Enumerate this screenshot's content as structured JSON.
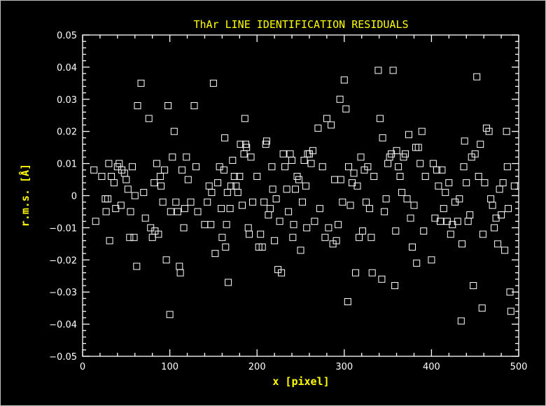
{
  "chart_data": {
    "type": "scatter",
    "title": "ThAr LINE IDENTIFICATION RESIDUALS",
    "xlabel": "x [pixel]",
    "ylabel": "r.m.s. [Å]",
    "xlim": [
      0,
      500
    ],
    "ylim": [
      -0.05,
      0.05
    ],
    "x_ticks": [
      0,
      100,
      200,
      300,
      400,
      500
    ],
    "x_tick_labels": [
      "0",
      "100",
      "200",
      "300",
      "400",
      "500"
    ],
    "y_ticks": [
      -0.05,
      -0.04,
      -0.03,
      -0.02,
      -0.01,
      0,
      0.01,
      0.02,
      0.03,
      0.04,
      0.05
    ],
    "y_tick_labels": [
      "−0.05",
      "−0.04",
      "−0.03",
      "−0.02",
      "−0.01",
      "0",
      "0.01",
      "0.02",
      "0.03",
      "0.04",
      "0.05"
    ],
    "marker": "open-square",
    "colors": {
      "background": "#000000",
      "axes": "#ffffff",
      "labels": "#ffff00",
      "markers": "#ffffff"
    },
    "points": [
      [
        13,
        0.008
      ],
      [
        15,
        -0.008
      ],
      [
        22,
        0.006
      ],
      [
        26,
        -0.001
      ],
      [
        27,
        -0.005
      ],
      [
        29,
        -0.001
      ],
      [
        30,
        0.01
      ],
      [
        31,
        -0.014
      ],
      [
        33,
        0.006
      ],
      [
        36,
        0.004
      ],
      [
        38,
        -0.004
      ],
      [
        40,
        0.009
      ],
      [
        42,
        0.01
      ],
      [
        44,
        -0.003
      ],
      [
        45,
        0.008
      ],
      [
        48,
        0.007
      ],
      [
        50,
        0.005
      ],
      [
        52,
        0.002
      ],
      [
        54,
        -0.013
      ],
      [
        55,
        -0.005
      ],
      [
        57,
        0.009
      ],
      [
        59,
        -0.013
      ],
      [
        60,
        0.0
      ],
      [
        62,
        -0.022
      ],
      [
        63,
        0.028
      ],
      [
        67,
        0.035
      ],
      [
        70,
        0.001
      ],
      [
        72,
        -0.007
      ],
      [
        76,
        0.024
      ],
      [
        78,
        -0.01
      ],
      [
        80,
        -0.013
      ],
      [
        82,
        0.004
      ],
      [
        83,
        -0.011
      ],
      [
        85,
        0.01
      ],
      [
        87,
        -0.012
      ],
      [
        89,
        0.006
      ],
      [
        90,
        0.003
      ],
      [
        92,
        -0.002
      ],
      [
        94,
        0.008
      ],
      [
        96,
        -0.02
      ],
      [
        98,
        0.028
      ],
      [
        100,
        -0.037
      ],
      [
        101,
        -0.005
      ],
      [
        103,
        0.012
      ],
      [
        105,
        0.02
      ],
      [
        107,
        -0.002
      ],
      [
        109,
        -0.005
      ],
      [
        111,
        -0.022
      ],
      [
        112,
        -0.024
      ],
      [
        114,
        0.008
      ],
      [
        116,
        -0.01
      ],
      [
        117,
        -0.004
      ],
      [
        119,
        0.012
      ],
      [
        121,
        0.005
      ],
      [
        124,
        -0.002
      ],
      [
        128,
        0.028
      ],
      [
        130,
        0.009
      ],
      [
        132,
        -0.005
      ],
      [
        140,
        -0.009
      ],
      [
        143,
        -0.002
      ],
      [
        145,
        0.003
      ],
      [
        147,
        -0.009
      ],
      [
        148,
        0.001
      ],
      [
        150,
        0.035
      ],
      [
        152,
        -0.018
      ],
      [
        155,
        0.004
      ],
      [
        157,
        0.009
      ],
      [
        159,
        -0.004
      ],
      [
        160,
        -0.013
      ],
      [
        162,
        0.008
      ],
      [
        163,
        0.018
      ],
      [
        164,
        -0.016
      ],
      [
        165,
        -0.009
      ],
      [
        166,
        0.001
      ],
      [
        167,
        -0.027
      ],
      [
        169,
        -0.004
      ],
      [
        170,
        0.003
      ],
      [
        172,
        0.011
      ],
      [
        174,
        0.006
      ],
      [
        176,
        0.003
      ],
      [
        178,
        0.001
      ],
      [
        180,
        0.006
      ],
      [
        181,
        0.016
      ],
      [
        183,
        -0.003
      ],
      [
        185,
        0.013
      ],
      [
        186,
        0.024
      ],
      [
        187,
        0.016
      ],
      [
        188,
        0.015
      ],
      [
        190,
        -0.01
      ],
      [
        191,
        -0.012
      ],
      [
        193,
        0.012
      ],
      [
        195,
        -0.002
      ],
      [
        200,
        0.006
      ],
      [
        202,
        -0.016
      ],
      [
        204,
        -0.012
      ],
      [
        206,
        -0.016
      ],
      [
        208,
        -0.002
      ],
      [
        210,
        0.016
      ],
      [
        211,
        0.017
      ],
      [
        213,
        -0.006
      ],
      [
        215,
        -0.004
      ],
      [
        217,
        0.009
      ],
      [
        218,
        0.002
      ],
      [
        220,
        -0.014
      ],
      [
        222,
        -0.001
      ],
      [
        224,
        -0.023
      ],
      [
        226,
        -0.008
      ],
      [
        228,
        -0.024
      ],
      [
        230,
        0.013
      ],
      [
        232,
        0.009
      ],
      [
        234,
        0.002
      ],
      [
        236,
        -0.005
      ],
      [
        238,
        0.013
      ],
      [
        240,
        0.011
      ],
      [
        241,
        -0.013
      ],
      [
        242,
        -0.009
      ],
      [
        244,
        0.002
      ],
      [
        246,
        0.006
      ],
      [
        248,
        0.005
      ],
      [
        250,
        -0.017
      ],
      [
        252,
        -0.002
      ],
      [
        254,
        0.011
      ],
      [
        256,
        0.003
      ],
      [
        257,
        -0.01
      ],
      [
        258,
        0.013
      ],
      [
        260,
        0.013
      ],
      [
        262,
        0.01
      ],
      [
        264,
        0.014
      ],
      [
        266,
        -0.008
      ],
      [
        270,
        0.021
      ],
      [
        272,
        -0.004
      ],
      [
        275,
        0.009
      ],
      [
        278,
        -0.013
      ],
      [
        280,
        0.024
      ],
      [
        282,
        -0.01
      ],
      [
        285,
        0.022
      ],
      [
        287,
        -0.015
      ],
      [
        289,
        0.005
      ],
      [
        291,
        -0.014
      ],
      [
        293,
        -0.009
      ],
      [
        295,
        0.03
      ],
      [
        296,
        0.005
      ],
      [
        298,
        -0.002
      ],
      [
        300,
        0.036
      ],
      [
        302,
        0.027
      ],
      [
        304,
        -0.033
      ],
      [
        305,
        0.009
      ],
      [
        307,
        -0.003
      ],
      [
        309,
        0.004
      ],
      [
        311,
        0.007
      ],
      [
        313,
        -0.024
      ],
      [
        315,
        0.003
      ],
      [
        317,
        -0.013
      ],
      [
        319,
        0.012
      ],
      [
        321,
        -0.011
      ],
      [
        323,
        0.008
      ],
      [
        325,
        -0.002
      ],
      [
        327,
        0.009
      ],
      [
        329,
        -0.004
      ],
      [
        331,
        -0.013
      ],
      [
        332,
        -0.024
      ],
      [
        334,
        0.006
      ],
      [
        339,
        0.039
      ],
      [
        341,
        0.024
      ],
      [
        343,
        -0.026
      ],
      [
        344,
        0.018
      ],
      [
        346,
        -0.005
      ],
      [
        348,
        -0.001
      ],
      [
        350,
        0.01
      ],
      [
        352,
        0.012
      ],
      [
        354,
        0.013
      ],
      [
        356,
        0.039
      ],
      [
        358,
        -0.028
      ],
      [
        359,
        -0.011
      ],
      [
        360,
        0.014
      ],
      [
        362,
        0.009
      ],
      [
        364,
        0.006
      ],
      [
        366,
        0.001
      ],
      [
        368,
        0.012
      ],
      [
        370,
        0.013
      ],
      [
        372,
        -0.001
      ],
      [
        374,
        0.019
      ],
      [
        376,
        -0.007
      ],
      [
        378,
        -0.016
      ],
      [
        380,
        -0.003
      ],
      [
        382,
        0.015
      ],
      [
        383,
        -0.021
      ],
      [
        385,
        0.015
      ],
      [
        387,
        0.01
      ],
      [
        389,
        0.02
      ],
      [
        391,
        -0.011
      ],
      [
        393,
        0.006
      ],
      [
        400,
        -0.02
      ],
      [
        402,
        0.01
      ],
      [
        404,
        -0.007
      ],
      [
        406,
        0.008
      ],
      [
        408,
        0.003
      ],
      [
        410,
        -0.008
      ],
      [
        412,
        0.008
      ],
      [
        414,
        -0.004
      ],
      [
        416,
        0.001
      ],
      [
        418,
        -0.008
      ],
      [
        420,
        0.004
      ],
      [
        422,
        -0.012
      ],
      [
        424,
        -0.009
      ],
      [
        427,
        -0.002
      ],
      [
        430,
        -0.008
      ],
      [
        432,
        -0.001
      ],
      [
        434,
        -0.039
      ],
      [
        435,
        -0.015
      ],
      [
        437,
        0.009
      ],
      [
        438,
        0.017
      ],
      [
        440,
        0.004
      ],
      [
        442,
        -0.008
      ],
      [
        444,
        -0.006
      ],
      [
        446,
        0.012
      ],
      [
        448,
        -0.028
      ],
      [
        450,
        0.013
      ],
      [
        452,
        0.037
      ],
      [
        454,
        0.006
      ],
      [
        456,
        0.016
      ],
      [
        458,
        -0.035
      ],
      [
        459,
        -0.012
      ],
      [
        461,
        0.004
      ],
      [
        463,
        0.021
      ],
      [
        466,
        0.02
      ],
      [
        468,
        -0.001
      ],
      [
        470,
        -0.003
      ],
      [
        472,
        -0.01
      ],
      [
        474,
        -0.007
      ],
      [
        476,
        -0.015
      ],
      [
        478,
        0.002
      ],
      [
        480,
        -0.006
      ],
      [
        482,
        0.004
      ],
      [
        484,
        -0.017
      ],
      [
        486,
        0.02
      ],
      [
        487,
        0.009
      ],
      [
        488,
        -0.004
      ],
      [
        490,
        -0.03
      ],
      [
        491,
        -0.036
      ],
      [
        495,
        0.003
      ]
    ]
  }
}
